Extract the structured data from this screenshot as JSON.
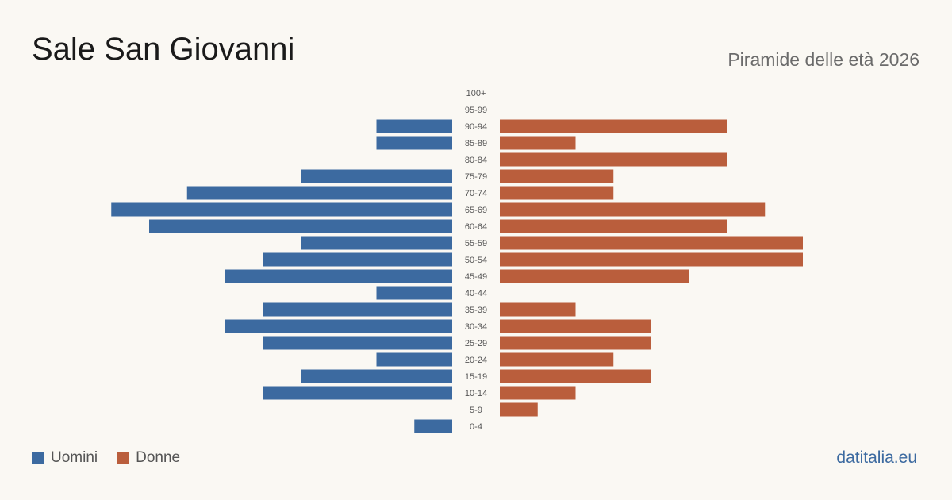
{
  "title": "Sale San Giovanni",
  "subtitle": "Piramide delle età 2026",
  "brand": "datitalia.eu",
  "colors": {
    "male": "#3c6aa0",
    "female": "#ba5e3c",
    "label": "#555555"
  },
  "chart_data": {
    "type": "bar",
    "orientation": "horizontal",
    "categories": [
      "100+",
      "95-99",
      "90-94",
      "85-89",
      "80-84",
      "75-79",
      "70-74",
      "65-69",
      "60-64",
      "55-59",
      "50-54",
      "45-49",
      "40-44",
      "35-39",
      "30-34",
      "25-29",
      "20-24",
      "15-19",
      "10-14",
      "5-9",
      "0-4"
    ],
    "series": [
      {
        "name": "Uomini",
        "values": [
          0,
          0,
          2,
          2,
          0,
          4,
          7,
          9,
          8,
          4,
          5,
          6,
          2,
          5,
          6,
          5,
          2,
          4,
          5,
          0,
          1
        ]
      },
      {
        "name": "Donne",
        "values": [
          0,
          0,
          6,
          2,
          6,
          3,
          3,
          7,
          6,
          8,
          8,
          5,
          0,
          2,
          4,
          4,
          3,
          4,
          2,
          1,
          0
        ]
      }
    ],
    "legend": {
      "position": "bottom-left",
      "entries": [
        "Uomini",
        "Donne"
      ]
    }
  }
}
